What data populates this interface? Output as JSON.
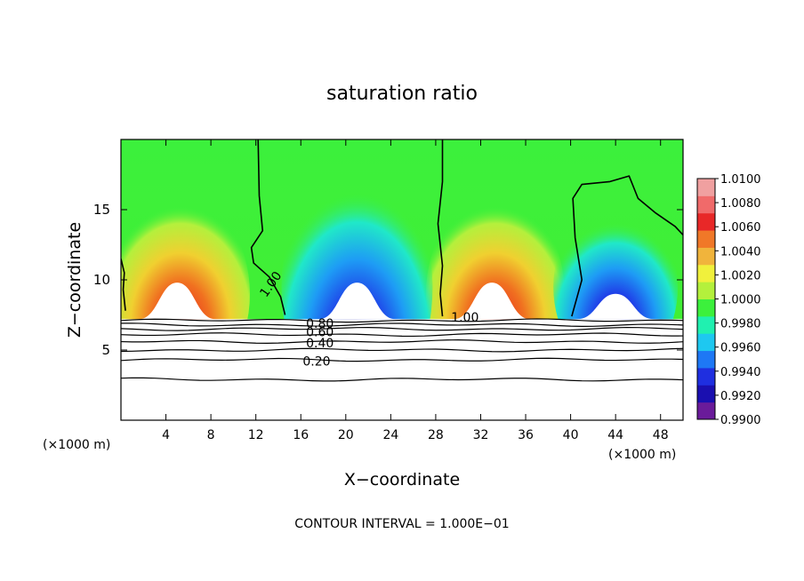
{
  "chart_data": {
    "type": "heatmap",
    "title": "saturation ratio",
    "xlabel": "X−coordinate",
    "ylabel": "Z−coordinate",
    "x_unit_left": "(×1000 m)",
    "x_unit_right": "(×1000 m)",
    "footer": "CONTOUR INTERVAL = 1.000E−01",
    "xlim": [
      0,
      50
    ],
    "ylim": [
      0,
      20
    ],
    "x_ticks": [
      4,
      8,
      12,
      16,
      20,
      24,
      28,
      32,
      36,
      40,
      44,
      48
    ],
    "x_tick_labels": [
      "4",
      "8",
      "12",
      "16",
      "20",
      "24",
      "28",
      "32",
      "36",
      "40",
      "44",
      "48"
    ],
    "y_ticks": [
      5,
      10,
      15
    ],
    "y_tick_labels": [
      "5",
      "10",
      "15"
    ],
    "colorbar": {
      "min": 0.99,
      "max": 1.01,
      "tick_values": [
        1.01,
        1.008,
        1.006,
        1.004,
        1.002,
        1.0,
        0.998,
        0.996,
        0.994,
        0.992,
        0.99
      ],
      "tick_labels": [
        "1.0100",
        "1.0080",
        "1.0060",
        "1.0040",
        "1.0020",
        "1.0000",
        "0.9980",
        "0.9960",
        "0.9940",
        "0.9920",
        "0.9900"
      ],
      "colors": [
        "#6a1b9a",
        "#1a0fb0",
        "#1f2fe0",
        "#1e78f5",
        "#1ec8f0",
        "#20f0b0",
        "#3cf03c",
        "#b4f03c",
        "#f0f03c",
        "#f0b43c",
        "#f07828",
        "#e82828",
        "#f06a6a",
        "#f0a0a0"
      ]
    },
    "contour_labels": [
      "1.00",
      "1.00",
      "0.80",
      "0.60",
      "0.40",
      "0.20"
    ],
    "mountain_peaks_x": [
      5,
      21,
      33,
      44
    ],
    "lower_contour_levels": [
      0.2,
      0.4,
      0.6,
      0.8,
      1.0
    ]
  }
}
